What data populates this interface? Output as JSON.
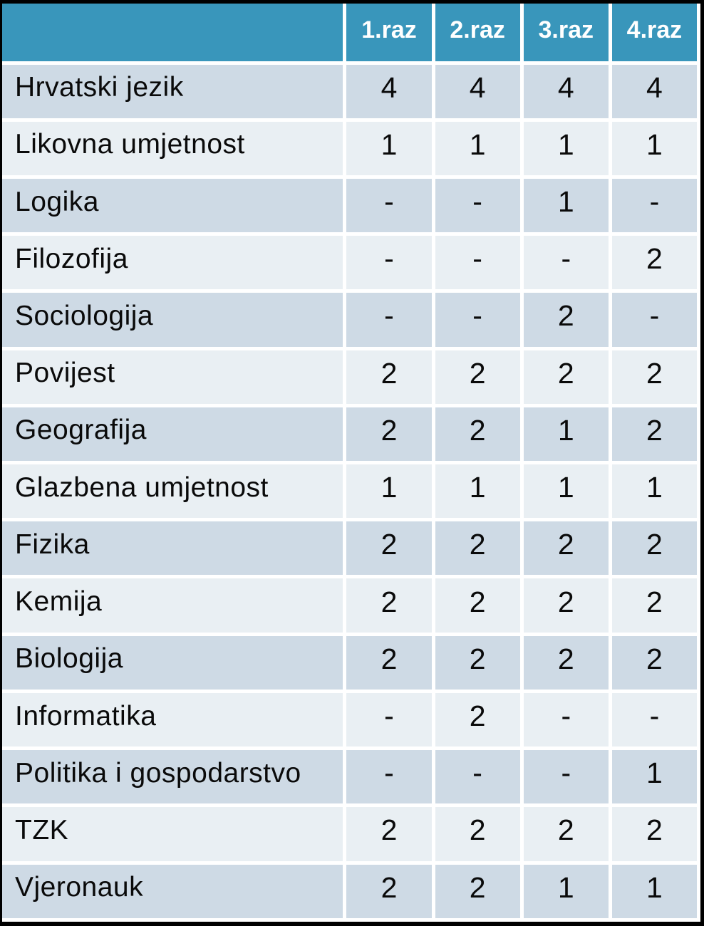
{
  "colors": {
    "header_bg": "#3996BB",
    "header_text": "#FFFFFF",
    "row_odd_bg": "#CEDAE5",
    "row_even_bg": "#E9EFF3",
    "grid": "#FFFFFF",
    "frame": "#000000",
    "body_text": "#0A0A0A"
  },
  "chart_data": {
    "type": "table",
    "title": "",
    "corner_label": "",
    "columns": [
      "1.raz",
      "2.raz",
      "3.raz",
      "4.raz"
    ],
    "rows": [
      {
        "subject": "Hrvatski jezik",
        "values": [
          "4",
          "4",
          "4",
          "4"
        ]
      },
      {
        "subject": "Likovna umjetnost",
        "values": [
          "1",
          "1",
          "1",
          "1"
        ]
      },
      {
        "subject": "Logika",
        "values": [
          "-",
          "-",
          "1",
          "-"
        ]
      },
      {
        "subject": "Filozofija",
        "values": [
          "-",
          "-",
          "-",
          "2"
        ]
      },
      {
        "subject": "Sociologija",
        "values": [
          "-",
          "-",
          "2",
          "-"
        ]
      },
      {
        "subject": "Povijest",
        "values": [
          "2",
          "2",
          "2",
          "2"
        ]
      },
      {
        "subject": "Geografija",
        "values": [
          "2",
          "2",
          "1",
          "2"
        ]
      },
      {
        "subject": "Glazbena umjetnost",
        "values": [
          "1",
          "1",
          "1",
          "1"
        ]
      },
      {
        "subject": "Fizika",
        "values": [
          "2",
          "2",
          "2",
          "2"
        ]
      },
      {
        "subject": "Kemija",
        "values": [
          "2",
          "2",
          "2",
          "2"
        ]
      },
      {
        "subject": "Biologija",
        "values": [
          "2",
          "2",
          "2",
          "2"
        ]
      },
      {
        "subject": "Informatika",
        "values": [
          "-",
          "2",
          "-",
          "-"
        ]
      },
      {
        "subject": "Politika i gospodarstvo",
        "values": [
          "-",
          "-",
          "-",
          "1"
        ]
      },
      {
        "subject": "TZK",
        "values": [
          "2",
          "2",
          "2",
          "2"
        ]
      },
      {
        "subject": "Vjeronauk",
        "values": [
          "2",
          "2",
          "1",
          "1"
        ]
      }
    ]
  }
}
